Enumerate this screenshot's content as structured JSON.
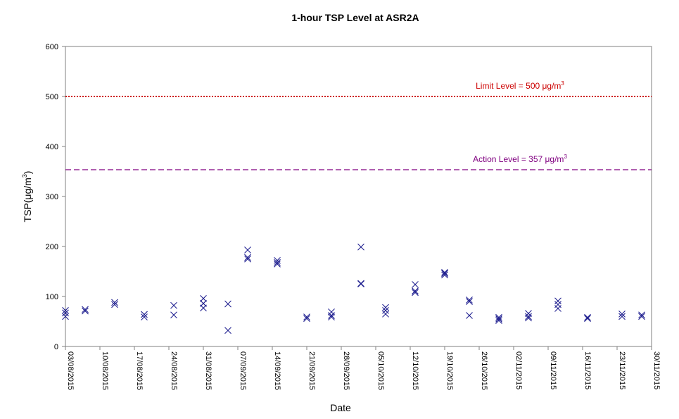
{
  "chart_data": {
    "type": "scatter",
    "title": "1-hour TSP Level at ASR2A",
    "xlabel": "Date",
    "ylabel": "TSP(μg/m",
    "ylabel_sup": "3",
    "ylabel_close": ")",
    "ylim": [
      0,
      600
    ],
    "y_ticks": [
      0,
      100,
      200,
      300,
      400,
      500,
      600
    ],
    "xlim": [
      "2015-08-03",
      "2015-11-30"
    ],
    "x_tick_labels": [
      "03/08/2015",
      "10/08/2015",
      "17/08/2015",
      "24/08/2015",
      "31/08/2015",
      "07/09/2015",
      "14/09/2015",
      "21/09/2015",
      "28/09/2015",
      "05/10/2015",
      "12/10/2015",
      "19/10/2015",
      "26/10/2015",
      "02/11/2015",
      "09/11/2015",
      "16/11/2015",
      "23/11/2015",
      "30/11/2015"
    ],
    "grid": false,
    "marker_color": "#1f1f8f",
    "reference_lines": [
      {
        "label": "Limit Level  = 500 μg/m",
        "label_sup": "3",
        "value": 500,
        "color": "#cc0000",
        "style": "dotted"
      },
      {
        "label": "Action Level  = 357 μg/m",
        "label_sup": "3",
        "value": 357,
        "color": "#800080",
        "style": "dashed"
      }
    ],
    "series": [
      {
        "points": [
          [
            "2015-08-03",
            60
          ],
          [
            "2015-08-03",
            67
          ],
          [
            "2015-08-03",
            72
          ],
          [
            "2015-08-07",
            71
          ],
          [
            "2015-08-07",
            74
          ],
          [
            "2015-08-13",
            84
          ],
          [
            "2015-08-13",
            88
          ],
          [
            "2015-08-19",
            59
          ],
          [
            "2015-08-19",
            64
          ],
          [
            "2015-08-25",
            63
          ],
          [
            "2015-08-25",
            82
          ],
          [
            "2015-08-31",
            77
          ],
          [
            "2015-08-31",
            86
          ],
          [
            "2015-08-31",
            96
          ],
          [
            "2015-09-05",
            32
          ],
          [
            "2015-09-05",
            85
          ],
          [
            "2015-09-09",
            175
          ],
          [
            "2015-09-09",
            178
          ],
          [
            "2015-09-09",
            193
          ],
          [
            "2015-09-15",
            165
          ],
          [
            "2015-09-15",
            168
          ],
          [
            "2015-09-15",
            172
          ],
          [
            "2015-09-21",
            56
          ],
          [
            "2015-09-21",
            59
          ],
          [
            "2015-09-26",
            59
          ],
          [
            "2015-09-26",
            62
          ],
          [
            "2015-09-26",
            69
          ],
          [
            "2015-10-02",
            125
          ],
          [
            "2015-10-02",
            126
          ],
          [
            "2015-10-02",
            199
          ],
          [
            "2015-10-07",
            65
          ],
          [
            "2015-10-07",
            72
          ],
          [
            "2015-10-07",
            78
          ],
          [
            "2015-10-13",
            108
          ],
          [
            "2015-10-13",
            111
          ],
          [
            "2015-10-13",
            124
          ],
          [
            "2015-10-19",
            143
          ],
          [
            "2015-10-19",
            146
          ],
          [
            "2015-10-19",
            148
          ],
          [
            "2015-10-24",
            62
          ],
          [
            "2015-10-24",
            90
          ],
          [
            "2015-10-24",
            93
          ],
          [
            "2015-10-30",
            52
          ],
          [
            "2015-10-30",
            55
          ],
          [
            "2015-10-30",
            58
          ],
          [
            "2015-11-05",
            57
          ],
          [
            "2015-11-05",
            60
          ],
          [
            "2015-11-05",
            66
          ],
          [
            "2015-11-11",
            76
          ],
          [
            "2015-11-11",
            84
          ],
          [
            "2015-11-11",
            91
          ],
          [
            "2015-11-17",
            56
          ],
          [
            "2015-11-17",
            58
          ],
          [
            "2015-11-24",
            60
          ],
          [
            "2015-11-24",
            65
          ],
          [
            "2015-11-28",
            60
          ],
          [
            "2015-11-28",
            63
          ]
        ]
      }
    ]
  }
}
